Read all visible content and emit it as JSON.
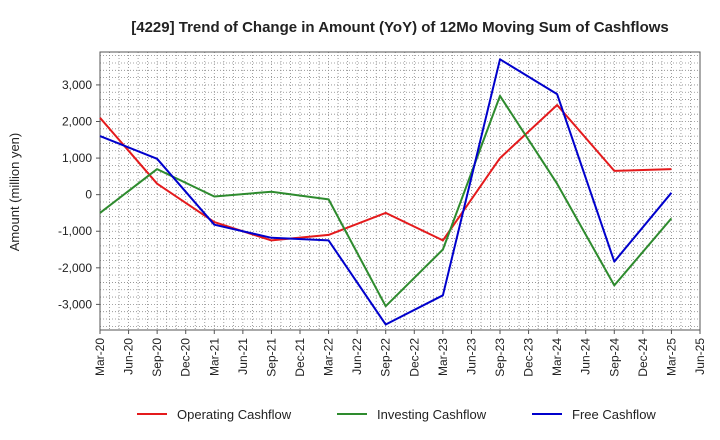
{
  "chart_data": {
    "type": "line",
    "title": "[4229]  Trend of Change in Amount (YoY) of 12Mo Moving Sum of Cashflows",
    "xlabel": "",
    "ylabel": "Amount (million yen)",
    "ylim": [
      -3700,
      3900
    ],
    "yticks": [
      -3000,
      -2000,
      -1000,
      0,
      1000,
      2000,
      3000
    ],
    "ytick_labels": [
      "-3,000",
      "-2,000",
      "-1,000",
      "0",
      "1,000",
      "2,000",
      "3,000"
    ],
    "categories": [
      "Mar-20",
      "Jun-20",
      "Sep-20",
      "Dec-20",
      "Mar-21",
      "Jun-21",
      "Sep-21",
      "Dec-21",
      "Mar-22",
      "Jun-22",
      "Sep-22",
      "Dec-22",
      "Mar-23",
      "Jun-23",
      "Sep-23",
      "Dec-23",
      "Mar-24",
      "Jun-24",
      "Sep-24",
      "Dec-24",
      "Mar-25",
      "Jun-25"
    ],
    "series": [
      {
        "name": "Operating Cashflow",
        "color": "#e41a1c",
        "points": [
          [
            0,
            2100
          ],
          [
            2,
            300
          ],
          [
            4,
            -750
          ],
          [
            6,
            -1250
          ],
          [
            8,
            -1100
          ],
          [
            10,
            -500
          ],
          [
            12,
            -1250
          ],
          [
            14,
            1000
          ],
          [
            16,
            2450
          ],
          [
            18,
            650
          ],
          [
            20,
            700
          ]
        ]
      },
      {
        "name": "Investing Cashflow",
        "color": "#2e8b2e",
        "points": [
          [
            0,
            -500
          ],
          [
            2,
            700
          ],
          [
            4,
            -50
          ],
          [
            6,
            80
          ],
          [
            8,
            -130
          ],
          [
            10,
            -3050
          ],
          [
            12,
            -1500
          ],
          [
            14,
            2700
          ],
          [
            16,
            300
          ],
          [
            18,
            -2480
          ],
          [
            20,
            -650
          ]
        ]
      },
      {
        "name": "Free Cashflow",
        "color": "#0000cc",
        "points": [
          [
            0,
            1600
          ],
          [
            2,
            980
          ],
          [
            4,
            -820
          ],
          [
            6,
            -1180
          ],
          [
            8,
            -1250
          ],
          [
            10,
            -3550
          ],
          [
            12,
            -2750
          ],
          [
            14,
            3700
          ],
          [
            16,
            2750
          ],
          [
            18,
            -1830
          ],
          [
            20,
            50
          ]
        ]
      }
    ],
    "grid": true,
    "legend_position": "bottom"
  }
}
